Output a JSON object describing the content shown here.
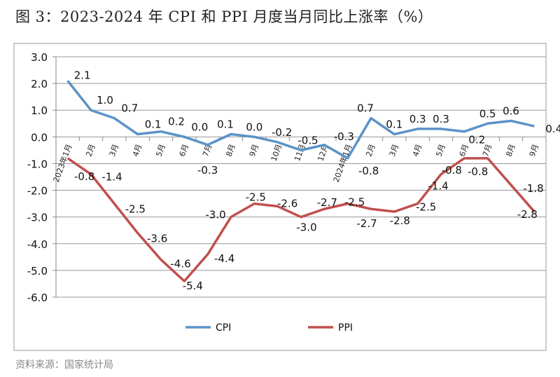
{
  "chart_data": {
    "type": "line",
    "title": "图 3：2023-2024 年 CPI 和 PPI 月度当月同比上涨率（%）",
    "source": "资料来源：国家统计局",
    "categories": [
      "2023年1月",
      "2月",
      "3月",
      "4月",
      "5月",
      "6月",
      "7月",
      "8月",
      "9月",
      "10月",
      "11月",
      "12月",
      "2024年1月",
      "2月",
      "3月",
      "4月",
      "5月",
      "6月",
      "7月",
      "8月",
      "9月"
    ],
    "yticks": [
      "3.0",
      "2.0",
      "1.0",
      "0.0",
      "-1.0",
      "-2.0",
      "-3.0",
      "-4.0",
      "-5.0",
      "-6.0"
    ],
    "ylim": [
      -6,
      3
    ],
    "grid": true,
    "legend": "bottom",
    "series": [
      {
        "name": "CPI",
        "color": "#5b93c7",
        "values": [
          2.1,
          1.0,
          0.7,
          0.1,
          0.2,
          0.0,
          -0.3,
          0.1,
          0.0,
          -0.2,
          -0.5,
          -0.3,
          -0.8,
          0.7,
          0.1,
          0.3,
          0.3,
          0.2,
          0.5,
          0.6,
          0.4
        ]
      },
      {
        "name": "PPI",
        "color": "#c0504d",
        "values": [
          -0.8,
          -1.4,
          -2.5,
          -3.6,
          -4.6,
          -5.4,
          -4.4,
          -3.0,
          -2.5,
          -2.6,
          -3.0,
          -2.7,
          -2.5,
          -2.7,
          -2.8,
          -2.5,
          -1.4,
          -0.8,
          -0.8,
          -1.8,
          -2.8
        ]
      }
    ]
  }
}
